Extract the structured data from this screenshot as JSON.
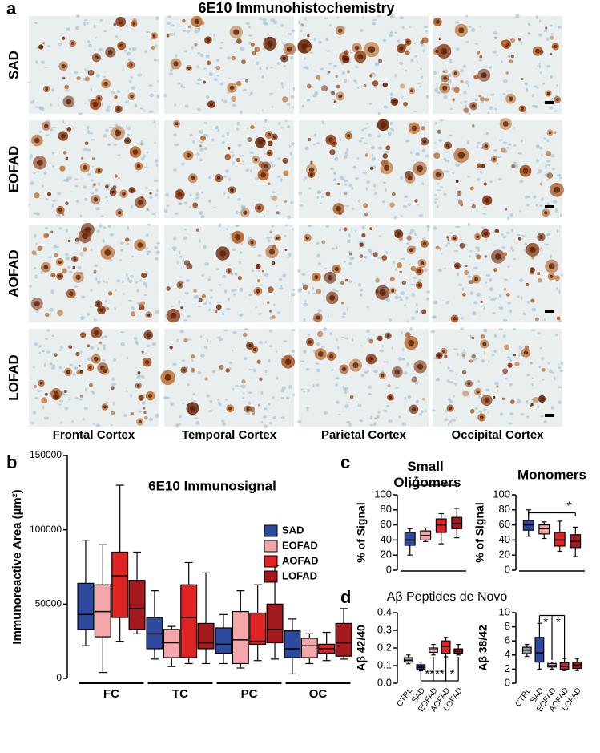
{
  "panel_a": {
    "label": "a",
    "title": "6E10 Immunohistochemistry",
    "rows": [
      "SAD",
      "EOFAD",
      "AOFAD",
      "LOFAD"
    ],
    "columns": [
      "Frontal Cortex",
      "Temporal Cortex",
      "Parietal Cortex",
      "Occipital Cortex"
    ]
  },
  "panel_labels": [
    "b",
    "c",
    "d"
  ],
  "panel_d_title": "Aβ Peptides de Novo",
  "chart_data": [
    {
      "type": "box",
      "title": "6E10 Immunosignal",
      "ylabel": "Immunoreactive Area (µm²)",
      "categories": [
        "FC",
        "TC",
        "PC",
        "OC"
      ],
      "ylim": [
        0,
        150000
      ],
      "yticks": [
        0,
        50000,
        100000,
        150000
      ],
      "legend": "right",
      "series": [
        {
          "name": "SAD",
          "color": "#2e4a9e",
          "values": [
            [
              22000,
              33000,
              43000,
              64000,
              93000
            ],
            [
              13000,
              20000,
              30000,
              41000,
              59000
            ],
            [
              10000,
              17000,
              23000,
              34000,
              43000
            ],
            [
              3000,
              14000,
              20000,
              32000,
              40000
            ]
          ]
        },
        {
          "name": "EOFAD",
          "color": "#f4a6a8",
          "values": [
            [
              4000,
              28000,
              45000,
              63000,
              90000
            ],
            [
              8000,
              14000,
              24000,
              33000,
              35000
            ],
            [
              7000,
              10000,
              26000,
              45000,
              59000
            ],
            [
              10000,
              14000,
              22000,
              27000,
              30000
            ]
          ]
        },
        {
          "name": "AOFAD",
          "color": "#e02424",
          "values": [
            [
              25000,
              41000,
              69000,
              85000,
              130000
            ],
            [
              10000,
              14000,
              41000,
              63000,
              78000
            ],
            [
              12000,
              23000,
              25000,
              44000,
              63000
            ],
            [
              12000,
              17000,
              20000,
              23000,
              31000
            ]
          ]
        },
        {
          "name": "LOFAD",
          "color": "#a21a1e",
          "values": [
            [
              30000,
              33000,
              47000,
              66000,
              85000
            ],
            [
              10000,
              20000,
              24000,
              37000,
              71000
            ],
            [
              13000,
              24000,
              33000,
              50000,
              76000
            ],
            [
              13000,
              15000,
              24000,
              37000,
              47000
            ]
          ]
        }
      ]
    },
    {
      "type": "box",
      "title": "Small Oligomers",
      "ylabel": "% of Signal",
      "ylim": [
        0,
        100
      ],
      "yticks": [
        0,
        20,
        40,
        60,
        80,
        100
      ],
      "series": [
        {
          "color": "#2e4a9e",
          "values": [
            [
              20,
              33,
              40,
              50,
              55
            ]
          ]
        },
        {
          "color": "#f4a6a8",
          "values": [
            [
              38,
              40,
              46,
              52,
              56
            ]
          ]
        },
        {
          "color": "#e02424",
          "values": [
            [
              35,
              50,
              60,
              68,
              75
            ]
          ]
        },
        {
          "color": "#a21a1e",
          "values": [
            [
              43,
              55,
              62,
              70,
              82
            ]
          ]
        }
      ],
      "annotations": [
        "*"
      ]
    },
    {
      "type": "box",
      "title": "Monomers",
      "ylabel": "% of Signal",
      "ylim": [
        0,
        100
      ],
      "yticks": [
        0,
        20,
        40,
        60,
        80,
        100
      ],
      "series": [
        {
          "color": "#2e4a9e",
          "values": [
            [
              45,
              53,
              60,
              66,
              80
            ]
          ]
        },
        {
          "color": "#f4a6a8",
          "values": [
            [
              42,
              48,
              55,
              60,
              64
            ]
          ]
        },
        {
          "color": "#e02424",
          "values": [
            [
              25,
              32,
              40,
              50,
              65
            ]
          ]
        },
        {
          "color": "#a21a1e",
          "values": [
            [
              18,
              30,
              38,
              47,
              57
            ]
          ]
        }
      ],
      "annotations": [
        "*"
      ]
    },
    {
      "type": "box",
      "ylabel": "Aβ 42/40",
      "categories": [
        "CTRL",
        "SAD",
        "EOFAD",
        "AOFAD",
        "LOFAD"
      ],
      "ylim": [
        0,
        0.4
      ],
      "yticks": [
        {
          "value": 0,
          "label": "0.0"
        },
        0.1,
        0.2,
        0.3,
        0.4
      ],
      "colors": [
        "#9a9a9a",
        "#2e4a9e",
        "#f4a6a8",
        "#e02424",
        "#a21a1e"
      ],
      "values": [
        [
          0.11,
          0.12,
          0.13,
          0.145,
          0.16
        ],
        [
          0.07,
          0.08,
          0.09,
          0.105,
          0.12
        ],
        [
          0.16,
          0.175,
          0.19,
          0.2,
          0.22
        ],
        [
          0.15,
          0.17,
          0.21,
          0.24,
          0.26
        ],
        [
          0.16,
          0.17,
          0.18,
          0.195,
          0.22
        ]
      ],
      "annotations": [
        "**",
        "**",
        "*"
      ]
    },
    {
      "type": "box",
      "ylabel": "Aβ 38/42",
      "categories": [
        "CTRL",
        "SAD",
        "EOFAD",
        "AOFAD",
        "LOFAD"
      ],
      "ylim": [
        0,
        10
      ],
      "yticks": [
        0,
        2,
        4,
        6,
        8,
        10
      ],
      "colors": [
        "#9a9a9a",
        "#2e4a9e",
        "#f4a6a8",
        "#e02424",
        "#a21a1e"
      ],
      "values": [
        [
          3.8,
          4.2,
          4.7,
          5.1,
          5.5
        ],
        [
          2,
          3,
          4.3,
          6.5,
          8.5
        ],
        [
          2,
          2.3,
          2.5,
          2.8,
          3
        ],
        [
          1.8,
          2,
          2.4,
          2.9,
          3.5
        ],
        [
          1.8,
          2.1,
          2.6,
          3,
          3.5
        ]
      ],
      "annotations": [
        "*",
        "*"
      ]
    }
  ]
}
